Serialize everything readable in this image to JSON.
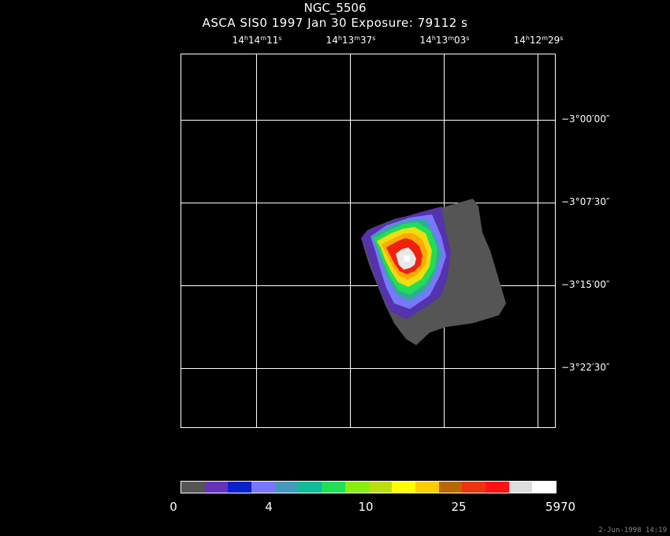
{
  "title": "NGC_5506",
  "subtitle": "ASCA SIS0   1997 Jan 30    Exposure: 79112 s",
  "ra_ticks": [
    {
      "h": "14",
      "m": "14",
      "s": "11"
    },
    {
      "h": "14",
      "m": "13",
      "s": "37"
    },
    {
      "h": "14",
      "m": "13",
      "s": "03"
    },
    {
      "h": "14",
      "m": "12",
      "s": "29"
    }
  ],
  "dec_ticks": [
    "−3°00′00″",
    "−3°07′30″",
    "−3°15′00″",
    "−3°22′30″"
  ],
  "colorbar": {
    "colors": [
      "#555555",
      "#6633bb",
      "#0a22cc",
      "#7777ff",
      "#4499bb",
      "#11bb99",
      "#22dd55",
      "#88ee11",
      "#bbdd11",
      "#ffff00",
      "#ffcc00",
      "#b86800",
      "#ee3311",
      "#ff1111",
      "#dddddd",
      "#ffffff"
    ],
    "labels": [
      "0",
      "4",
      "10",
      "25",
      "5970"
    ]
  },
  "timestamp": "2-Jun-1998 14:19"
}
